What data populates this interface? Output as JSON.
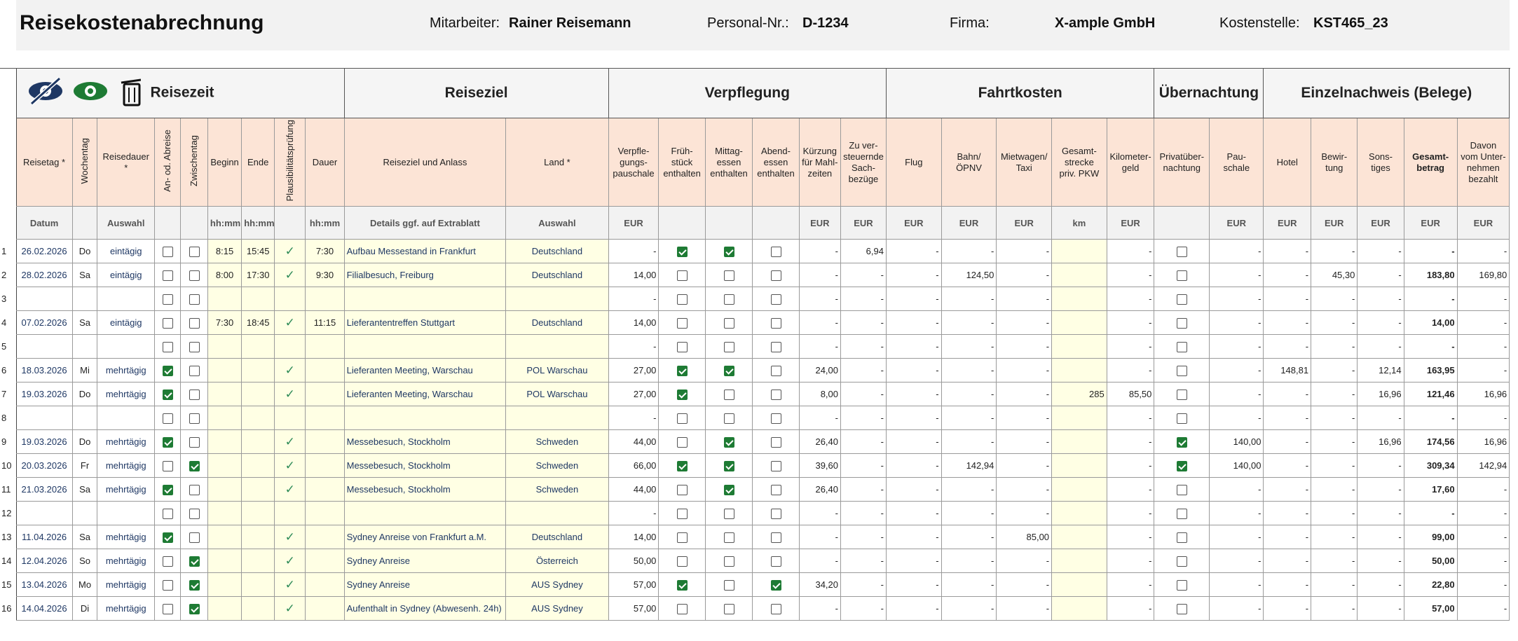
{
  "header": {
    "title": "Reisekostenabrechnung",
    "employee_label": "Mitarbeiter:",
    "employee": "Rainer Reisemann",
    "personnel_label": "Personal-Nr.:",
    "personnel": "D-1234",
    "company_label": "Firma:",
    "company": "X-ample GmbH",
    "cost_center_label": "Kostenstelle:",
    "cost_center": "KST465_23"
  },
  "table": {
    "groups": [
      "Reisezeit",
      "Reiseziel",
      "Verpflegung",
      "Fahrtkosten",
      "Übernachtung",
      "Einzelnachweis (Belege)"
    ],
    "columns": [
      "Reisetag *",
      "Wochentag",
      "Reisedauer *",
      "An- od. Abreise",
      "Zwischentag",
      "Beginn",
      "Ende",
      "Plausibilitätsprüfung",
      "Dauer",
      "Reiseziel und Anlass",
      "Land *",
      "Verpfle-\ngungs-\npauschale",
      "Früh-\nstück\nenthalten",
      "Mittag-\nessen\nenthalten",
      "Abend-\nessen\nenthalten",
      "Kürzung\nfür Mahl-\nzeiten",
      "Zu ver-\nsteuernde\nSach-\nbezüge",
      "Flug",
      "Bahn/\nÖPNV",
      "Mietwagen/\nTaxi",
      "Gesamt-\nstrecke\npriv. PKW",
      "Kilometer-\ngeld",
      "Privatüber-\nnachtung",
      "Pau-\nschale",
      "Hotel",
      "Bewir-\ntung",
      "Sons-\ntiges",
      "Gesamt-\nbetrag",
      "Davon\nvom Unter-\nnehmen\nbezahlt"
    ],
    "units": [
      "Datum",
      null,
      "Auswahl",
      null,
      null,
      "hh:mm",
      "hh:mm",
      null,
      "hh:mm",
      "Details ggf. auf Extrablatt",
      "Auswahl",
      "EUR",
      null,
      null,
      null,
      "EUR",
      "EUR",
      "EUR",
      "EUR",
      "EUR",
      "km",
      "EUR",
      null,
      "EUR",
      "EUR",
      "EUR",
      "EUR",
      "EUR",
      "EUR"
    ],
    "rows": [
      {
        "nr": "1",
        "cells": [
          "26.02.2026",
          "Do",
          "eintägig",
          false,
          false,
          "8:15",
          "15:45",
          "✓",
          "7:30",
          "Aufbau Messestand in Frankfurt",
          "Deutschland",
          "-",
          true,
          true,
          false,
          "-",
          "6,94",
          "-",
          "-",
          "-",
          null,
          "-",
          false,
          "-",
          "-",
          "-",
          "-",
          "-",
          "-"
        ]
      },
      {
        "nr": "2",
        "cells": [
          "28.02.2026",
          "Sa",
          "eintägig",
          false,
          false,
          "8:00",
          "17:30",
          "✓",
          "9:30",
          "Filialbesuch, Freiburg",
          "Deutschland",
          "14,00",
          false,
          false,
          false,
          "-",
          "-",
          "-",
          "124,50",
          "-",
          null,
          "-",
          false,
          "-",
          "-",
          "45,30",
          "-",
          "183,80",
          "169,80"
        ]
      },
      {
        "nr": "3",
        "cells": [
          null,
          null,
          null,
          false,
          false,
          null,
          null,
          null,
          null,
          null,
          null,
          "-",
          false,
          false,
          false,
          "-",
          "-",
          "-",
          "-",
          "-",
          null,
          "-",
          false,
          "-",
          "-",
          "-",
          "-",
          "-",
          "-"
        ]
      },
      {
        "nr": "4",
        "cells": [
          "07.02.2026",
          "Sa",
          "eintägig",
          false,
          false,
          "7:30",
          "18:45",
          "✓",
          "11:15",
          "Lieferantentreffen Stuttgart",
          "Deutschland",
          "14,00",
          false,
          false,
          false,
          "-",
          "-",
          "-",
          "-",
          "-",
          null,
          "-",
          false,
          "-",
          "-",
          "-",
          "-",
          "14,00",
          "-"
        ]
      },
      {
        "nr": "5",
        "cells": [
          null,
          null,
          null,
          false,
          false,
          null,
          null,
          null,
          null,
          null,
          null,
          "-",
          false,
          false,
          false,
          "-",
          "-",
          "-",
          "-",
          "-",
          null,
          "-",
          false,
          "-",
          "-",
          "-",
          "-",
          "-",
          "-"
        ]
      },
      {
        "nr": "6",
        "cells": [
          "18.03.2026",
          "Mi",
          "mehrtägig",
          true,
          false,
          null,
          null,
          "✓",
          null,
          "Lieferanten Meeting, Warschau",
          "POL Warschau",
          "27,00",
          true,
          true,
          false,
          "24,00",
          "-",
          "-",
          "-",
          "-",
          null,
          "-",
          false,
          "-",
          "148,81",
          "-",
          "12,14",
          "163,95",
          "-"
        ]
      },
      {
        "nr": "7",
        "cells": [
          "19.03.2026",
          "Do",
          "mehrtägig",
          true,
          false,
          null,
          null,
          "✓",
          null,
          "Lieferanten Meeting, Warschau",
          "POL Warschau",
          "27,00",
          true,
          false,
          false,
          "8,00",
          "-",
          "-",
          "-",
          "-",
          "285",
          "85,50",
          false,
          "-",
          "-",
          "-",
          "16,96",
          "121,46",
          "16,96"
        ]
      },
      {
        "nr": "8",
        "cells": [
          null,
          null,
          null,
          false,
          false,
          null,
          null,
          null,
          null,
          null,
          null,
          "-",
          false,
          false,
          false,
          "-",
          "-",
          "-",
          "-",
          "-",
          null,
          "-",
          false,
          "-",
          "-",
          "-",
          "-",
          "-",
          "-"
        ]
      },
      {
        "nr": "9",
        "cells": [
          "19.03.2026",
          "Do",
          "mehrtägig",
          true,
          false,
          null,
          null,
          "✓",
          null,
          "Messebesuch, Stockholm",
          "Schweden",
          "44,00",
          false,
          true,
          false,
          "26,40",
          "-",
          "-",
          "-",
          "-",
          null,
          "-",
          true,
          "140,00",
          "-",
          "-",
          "16,96",
          "174,56",
          "16,96"
        ]
      },
      {
        "nr": "10",
        "cells": [
          "20.03.2026",
          "Fr",
          "mehrtägig",
          false,
          true,
          null,
          null,
          "✓",
          null,
          "Messebesuch, Stockholm",
          "Schweden",
          "66,00",
          true,
          true,
          false,
          "39,60",
          "-",
          "-",
          "142,94",
          "-",
          null,
          "-",
          true,
          "140,00",
          "-",
          "-",
          "-",
          "309,34",
          "142,94"
        ]
      },
      {
        "nr": "11",
        "cells": [
          "21.03.2026",
          "Sa",
          "mehrtägig",
          true,
          false,
          null,
          null,
          "✓",
          null,
          "Messebesuch, Stockholm",
          "Schweden",
          "44,00",
          false,
          true,
          false,
          "26,40",
          "-",
          "-",
          "-",
          "-",
          null,
          "-",
          false,
          "-",
          "-",
          "-",
          "-",
          "17,60",
          "-"
        ]
      },
      {
        "nr": "12",
        "cells": [
          null,
          null,
          null,
          false,
          false,
          null,
          null,
          null,
          null,
          null,
          null,
          "-",
          false,
          false,
          false,
          "-",
          "-",
          "-",
          "-",
          "-",
          null,
          "-",
          false,
          "-",
          "-",
          "-",
          "-",
          "-",
          "-"
        ]
      },
      {
        "nr": "13",
        "cells": [
          "11.04.2026",
          "Sa",
          "mehrtägig",
          true,
          false,
          null,
          null,
          "✓",
          null,
          "Sydney Anreise von Frankfurt a.M.",
          "Deutschland",
          "14,00",
          false,
          false,
          false,
          "-",
          "-",
          "-",
          "-",
          "85,00",
          null,
          "-",
          false,
          "-",
          "-",
          "-",
          "-",
          "99,00",
          "-"
        ]
      },
      {
        "nr": "14",
        "cells": [
          "12.04.2026",
          "So",
          "mehrtägig",
          false,
          true,
          null,
          null,
          "✓",
          null,
          "Sydney Anreise",
          "Österreich",
          "50,00",
          false,
          false,
          false,
          "-",
          "-",
          "-",
          "-",
          "-",
          null,
          "-",
          false,
          "-",
          "-",
          "-",
          "-",
          "50,00",
          "-"
        ]
      },
      {
        "nr": "15",
        "cells": [
          "13.04.2026",
          "Mo",
          "mehrtägig",
          false,
          true,
          null,
          null,
          "✓",
          null,
          "Sydney Anreise",
          "AUS Sydney",
          "57,00",
          true,
          false,
          true,
          "34,20",
          "-",
          "-",
          "-",
          "-",
          null,
          "-",
          false,
          "-",
          "-",
          "-",
          "-",
          "22,80",
          "-"
        ]
      },
      {
        "nr": "16",
        "cells": [
          "14.04.2026",
          "Di",
          "mehrtägig",
          false,
          true,
          null,
          null,
          "✓",
          null,
          "Aufenthalt in Sydney (Abwesenh. 24h)",
          "AUS Sydney",
          "57,00",
          false,
          false,
          false,
          "-",
          "-",
          "-",
          "-",
          "-",
          null,
          "-",
          false,
          "-",
          "-",
          "-",
          "-",
          "57,00",
          "-"
        ]
      }
    ]
  }
}
